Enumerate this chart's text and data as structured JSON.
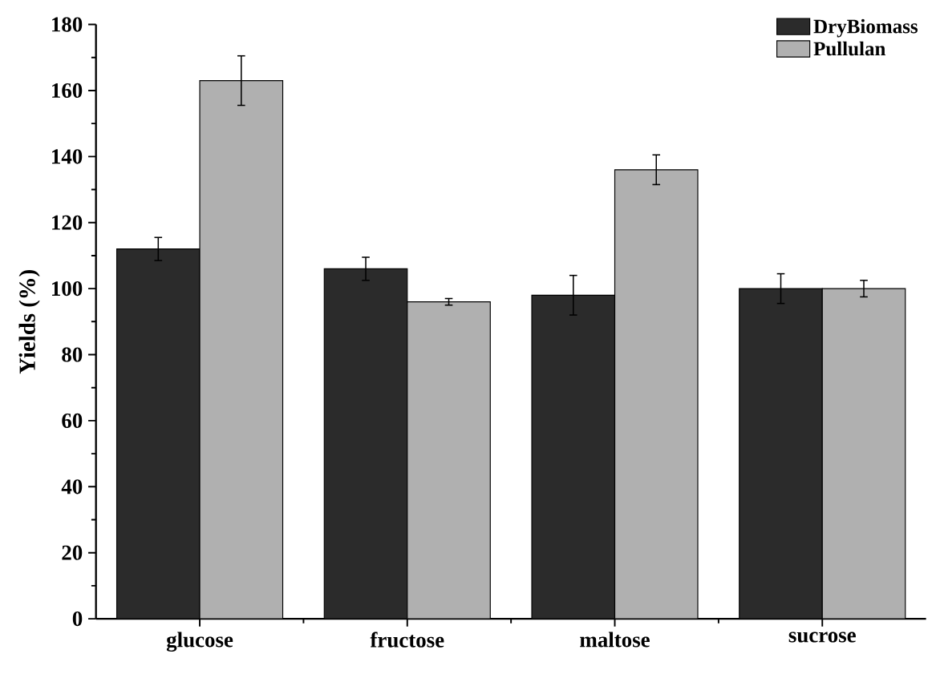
{
  "chart_data": {
    "type": "bar",
    "ylabel": "Yields (%)",
    "categories": [
      "glucose",
      "fructose",
      "maltose",
      "sucrose"
    ],
    "series": [
      {
        "name": "DryBiomass",
        "color": "#2b2b2b",
        "values": [
          112,
          106,
          98,
          100
        ],
        "errors": [
          3.5,
          3.5,
          6,
          4.5
        ]
      },
      {
        "name": "Pullulan",
        "color": "#b0b0b0",
        "values": [
          163,
          96,
          136,
          100
        ],
        "errors": [
          7.5,
          1,
          4.5,
          2.5
        ]
      }
    ],
    "ylim": [
      0,
      180
    ],
    "yticks": [
      0,
      20,
      40,
      60,
      80,
      100,
      120,
      140,
      160,
      180
    ],
    "legend": "top right",
    "grid": false
  }
}
